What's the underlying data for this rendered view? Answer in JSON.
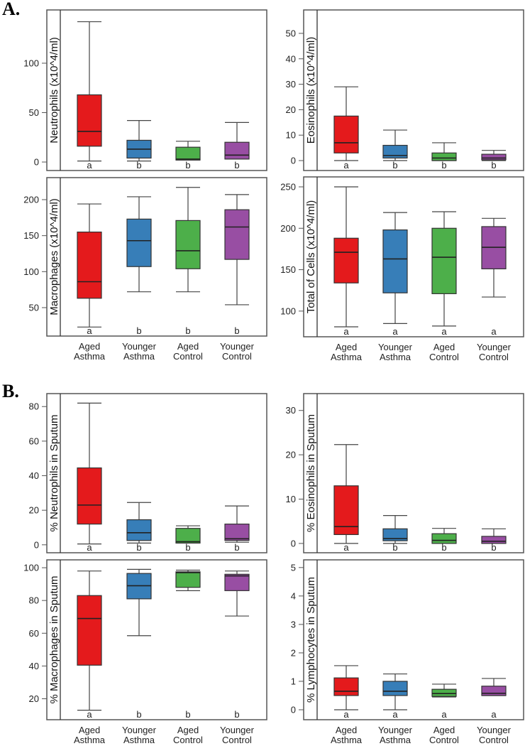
{
  "sections": [
    "A.",
    "B."
  ],
  "groups": [
    [
      "Aged",
      "Asthma"
    ],
    [
      "Younger",
      "Asthma"
    ],
    [
      "Aged",
      "Control"
    ],
    [
      "Younger",
      "Control"
    ]
  ],
  "colors": [
    "#e41a1c",
    "#377eb8",
    "#4daf4a",
    "#984ea3"
  ],
  "chart_data": [
    {
      "type": "box",
      "section": "A.",
      "ylabel": "Neutrophils (x10^4/ml)",
      "ylim": [
        -8.6,
        153.9
      ],
      "ticks": [
        0,
        50,
        100
      ],
      "categories": [
        "Aged Asthma",
        "Younger Asthma",
        "Aged Control",
        "Younger Control"
      ],
      "boxes": [
        {
          "min": 1,
          "q1": 16,
          "median": 31,
          "q3": 68,
          "max": 142
        },
        {
          "min": 1,
          "q1": 4,
          "median": 13,
          "q3": 22,
          "max": 42
        },
        {
          "min": 2,
          "q1": 2,
          "median": 3,
          "q3": 15,
          "max": 21
        },
        {
          "min": 3,
          "q1": 3,
          "median": 7,
          "q3": 20,
          "max": 40
        }
      ],
      "letters": [
        "a",
        "b",
        "b",
        "b"
      ]
    },
    {
      "type": "box",
      "section": "A.",
      "ylabel": "Eosinophils (x10^4/ml)",
      "ylim": [
        -3.9,
        59.2
      ],
      "ticks": [
        0,
        10,
        20,
        30,
        40,
        50
      ],
      "categories": [
        "Aged Asthma",
        "Younger Asthma",
        "Aged Control",
        "Younger Control"
      ],
      "boxes": [
        {
          "min": 0,
          "q1": 3,
          "median": 7,
          "q3": 17.5,
          "max": 29
        },
        {
          "min": 0,
          "q1": 1,
          "median": 2,
          "q3": 6,
          "max": 12
        },
        {
          "min": 0,
          "q1": 0,
          "median": 1,
          "q3": 3,
          "max": 7
        },
        {
          "min": 0,
          "q1": 0.3,
          "median": 1,
          "q3": 2.5,
          "max": 4
        }
      ],
      "letters": [
        "a",
        "b",
        "b",
        "b"
      ]
    },
    {
      "type": "box",
      "section": "A.",
      "ylabel": "Macrophages (x10^4/ml)",
      "ylim": [
        10.5,
        230.6
      ],
      "ticks": [
        50,
        100,
        150,
        200
      ],
      "categories": [
        "Aged Asthma",
        "Younger Asthma",
        "Aged Control",
        "Younger Control"
      ],
      "boxes": [
        {
          "min": 23,
          "q1": 63,
          "median": 86,
          "q3": 155,
          "max": 194
        },
        {
          "min": 72,
          "q1": 107,
          "median": 143,
          "q3": 173,
          "max": 204
        },
        {
          "min": 72,
          "q1": 104,
          "median": 129,
          "q3": 171,
          "max": 217
        },
        {
          "min": 54,
          "q1": 117,
          "median": 162,
          "q3": 186,
          "max": 207
        }
      ],
      "letters": [
        "a",
        "b",
        "b",
        "b"
      ]
    },
    {
      "type": "box",
      "section": "A.",
      "ylabel": "Total of Cells (x10^4/ml)",
      "ylim": [
        69,
        262
      ],
      "ticks": [
        100,
        150,
        200,
        250
      ],
      "categories": [
        "Aged Asthma",
        "Younger Asthma",
        "Aged Control",
        "Younger Control"
      ],
      "boxes": [
        {
          "min": 81,
          "q1": 134,
          "median": 171,
          "q3": 188,
          "max": 250
        },
        {
          "min": 85,
          "q1": 122,
          "median": 163,
          "q3": 198,
          "max": 219
        },
        {
          "min": 82,
          "q1": 121,
          "median": 165,
          "q3": 200,
          "max": 220
        },
        {
          "min": 117,
          "q1": 151,
          "median": 177,
          "q3": 202,
          "max": 212
        }
      ],
      "letters": [
        "a",
        "a",
        "a",
        "a"
      ]
    },
    {
      "type": "box",
      "section": "B.",
      "ylabel": "% Neutrophils in Sputum",
      "ylim": [
        -4.6,
        87.5
      ],
      "ticks": [
        0,
        20,
        40,
        60,
        80
      ],
      "categories": [
        "Aged Asthma",
        "Younger Asthma",
        "Aged Control",
        "Younger Control"
      ],
      "boxes": [
        {
          "min": 0.5,
          "q1": 12,
          "median": 23,
          "q3": 44.5,
          "max": 82
        },
        {
          "min": 1,
          "q1": 2.5,
          "median": 7,
          "q3": 14.5,
          "max": 24.5
        },
        {
          "min": 1,
          "q1": 1,
          "median": 1.8,
          "q3": 9.5,
          "max": 11
        },
        {
          "min": 1.5,
          "q1": 2.5,
          "median": 3.5,
          "q3": 12,
          "max": 22.5
        }
      ],
      "letters": [
        "a",
        "b",
        "b",
        "b"
      ]
    },
    {
      "type": "box",
      "section": "B.",
      "ylabel": "% Eosinophils in Sputum",
      "ylim": [
        -2.1,
        33.8
      ],
      "ticks": [
        0,
        10,
        20,
        30
      ],
      "categories": [
        "Aged Asthma",
        "Younger Asthma",
        "Aged Control",
        "Younger Control"
      ],
      "boxes": [
        {
          "min": 0,
          "q1": 2,
          "median": 3.8,
          "q3": 13,
          "max": 22.3
        },
        {
          "min": 0,
          "q1": 0.6,
          "median": 1.1,
          "q3": 3.3,
          "max": 6.3
        },
        {
          "min": 0,
          "q1": 0,
          "median": 0.7,
          "q3": 2.2,
          "max": 3.4
        },
        {
          "min": 0,
          "q1": 0,
          "median": 0.5,
          "q3": 1.6,
          "max": 3.3
        }
      ],
      "letters": [
        "a",
        "b",
        "b",
        "b"
      ]
    },
    {
      "type": "box",
      "section": "B.",
      "ylabel": "% Macrophages in Sputum",
      "ylim": [
        7.2,
        104.8
      ],
      "ticks": [
        20,
        40,
        60,
        80,
        100
      ],
      "categories": [
        "Aged Asthma",
        "Younger Asthma",
        "Aged Control",
        "Younger Control"
      ],
      "boxes": [
        {
          "min": 13,
          "q1": 40.5,
          "median": 69,
          "q3": 83,
          "max": 98
        },
        {
          "min": 58.5,
          "q1": 81,
          "median": 89,
          "q3": 96.5,
          "max": 99
        },
        {
          "min": 86,
          "q1": 88,
          "median": 97,
          "q3": 97.5,
          "max": 98.5
        },
        {
          "min": 70.5,
          "q1": 86,
          "median": 95,
          "q3": 96,
          "max": 98
        }
      ],
      "letters": [
        "a",
        "b",
        "b",
        "b"
      ]
    },
    {
      "type": "box",
      "section": "B.",
      "ylabel": "% Lymphocytes in Sputum",
      "ylim": [
        -0.35,
        5.27
      ],
      "ticks": [
        0,
        1,
        2,
        3,
        4,
        5
      ],
      "categories": [
        "Aged Asthma",
        "Younger Asthma",
        "Aged Control",
        "Younger Control"
      ],
      "boxes": [
        {
          "min": 0,
          "q1": 0.5,
          "median": 0.65,
          "q3": 1.12,
          "max": 1.55
        },
        {
          "min": 0,
          "q1": 0.5,
          "median": 0.65,
          "q3": 1.0,
          "max": 1.26
        },
        {
          "min": 0.45,
          "q1": 0.47,
          "median": 0.57,
          "q3": 0.72,
          "max": 0.9
        },
        {
          "min": 0.5,
          "q1": 0.5,
          "median": 0.58,
          "q3": 0.83,
          "max": 1.1
        }
      ],
      "letters": [
        "a",
        "a",
        "a",
        "a"
      ]
    }
  ]
}
